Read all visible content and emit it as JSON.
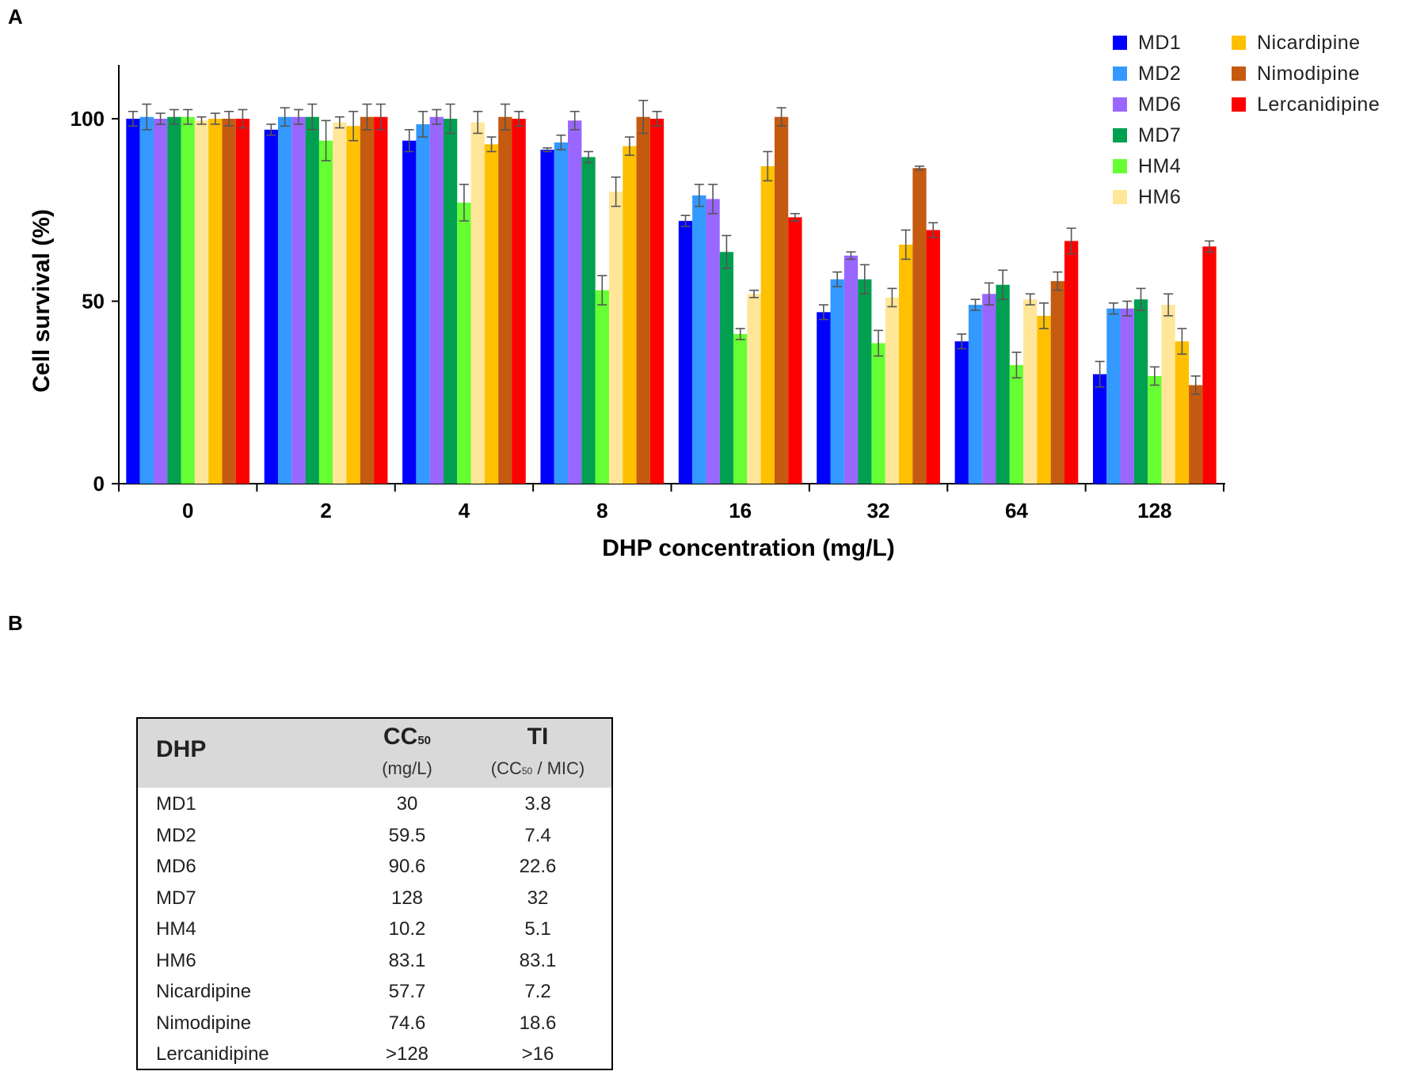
{
  "panel_labels": {
    "a": "A",
    "b": "B"
  },
  "chart_data": {
    "type": "bar",
    "title": "",
    "xlabel": "DHP concentration (mg/L)",
    "ylabel": "Cell survival (%)",
    "ylim": [
      0,
      115
    ],
    "yticks": [
      0,
      50,
      100
    ],
    "grid": false,
    "legend_position": "top-right",
    "categories": [
      "0",
      "2",
      "4",
      "8",
      "16",
      "32",
      "64",
      "128"
    ],
    "series": [
      {
        "name": "MD1",
        "color": "#0000ff",
        "values": [
          100,
          97,
          94,
          91.5,
          72,
          47,
          39,
          30
        ],
        "errors": [
          2,
          1.5,
          3,
          0.5,
          1.5,
          2,
          2,
          3.5
        ]
      },
      {
        "name": "MD2",
        "color": "#3399ff",
        "values": [
          100.5,
          100.5,
          98.5,
          93.5,
          79,
          56,
          49,
          48
        ],
        "errors": [
          3.5,
          2.5,
          3.5,
          2,
          3,
          2,
          1.5,
          1.5
        ]
      },
      {
        "name": "MD6",
        "color": "#9966ff",
        "values": [
          100,
          100.5,
          100.5,
          99.5,
          78,
          62.5,
          52,
          48
        ],
        "errors": [
          1.5,
          2,
          2,
          2.5,
          4,
          1,
          3,
          2
        ]
      },
      {
        "name": "MD7",
        "color": "#00a050",
        "values": [
          100.5,
          100.5,
          100,
          89.5,
          63.5,
          56,
          54.5,
          50.5
        ],
        "errors": [
          2,
          3.5,
          4,
          1.5,
          4.5,
          4,
          4,
          3
        ]
      },
      {
        "name": "HM4",
        "color": "#66ff33",
        "values": [
          100.5,
          94,
          77,
          53,
          41,
          38.5,
          32.5,
          29.5
        ],
        "errors": [
          2,
          5.5,
          5,
          4,
          1.5,
          3.5,
          3.5,
          2.5
        ]
      },
      {
        "name": "HM6",
        "color": "#ffe699",
        "values": [
          99.5,
          99,
          99,
          80,
          52,
          51,
          50.5,
          49
        ],
        "errors": [
          1,
          1.5,
          3,
          4,
          1,
          2.5,
          1.5,
          3
        ]
      },
      {
        "name": "Nicardipine",
        "color": "#ffc000",
        "values": [
          100,
          98,
          93,
          92.5,
          87,
          65.5,
          46,
          39
        ],
        "errors": [
          1.5,
          4,
          2,
          2.5,
          4,
          4,
          3.5,
          3.5
        ]
      },
      {
        "name": "Nimodipine",
        "color": "#c55a11",
        "values": [
          100,
          100.5,
          100.5,
          100.5,
          100.5,
          86.5,
          55.5,
          27
        ],
        "errors": [
          2,
          3.5,
          3.5,
          4.5,
          2.5,
          0.5,
          2.5,
          2.5
        ]
      },
      {
        "name": "Lercanidipine",
        "color": "#ff0000",
        "values": [
          100,
          100.5,
          100,
          100,
          73,
          69.5,
          66.5,
          65
        ],
        "errors": [
          2.5,
          3.5,
          2,
          2,
          1,
          2,
          3.5,
          1.5
        ]
      }
    ]
  },
  "table": {
    "headers": {
      "col0": "DHP",
      "col1_main": "CC",
      "col1_sub": "50",
      "col1_unit": "(mg/L)",
      "col2_main": "TI",
      "col2_unit_pre": "(CC",
      "col2_unit_sub": "50",
      "col2_unit_post": " / MIC)"
    },
    "rows": [
      {
        "name": "MD1",
        "cc50": "30",
        "ti": "3.8"
      },
      {
        "name": "MD2",
        "cc50": "59.5",
        "ti": "7.4"
      },
      {
        "name": "MD6",
        "cc50": "90.6",
        "ti": "22.6"
      },
      {
        "name": "MD7",
        "cc50": "128",
        "ti": "32"
      },
      {
        "name": "HM4",
        "cc50": "10.2",
        "ti": "5.1"
      },
      {
        "name": "HM6",
        "cc50": "83.1",
        "ti": "83.1"
      },
      {
        "name": "Nicardipine",
        "cc50": "57.7",
        "ti": "7.2"
      },
      {
        "name": "Nimodipine",
        "cc50": "74.6",
        "ti": "18.6"
      },
      {
        "name": "Lercanidipine",
        "cc50": ">128",
        "ti": ">16"
      }
    ]
  }
}
